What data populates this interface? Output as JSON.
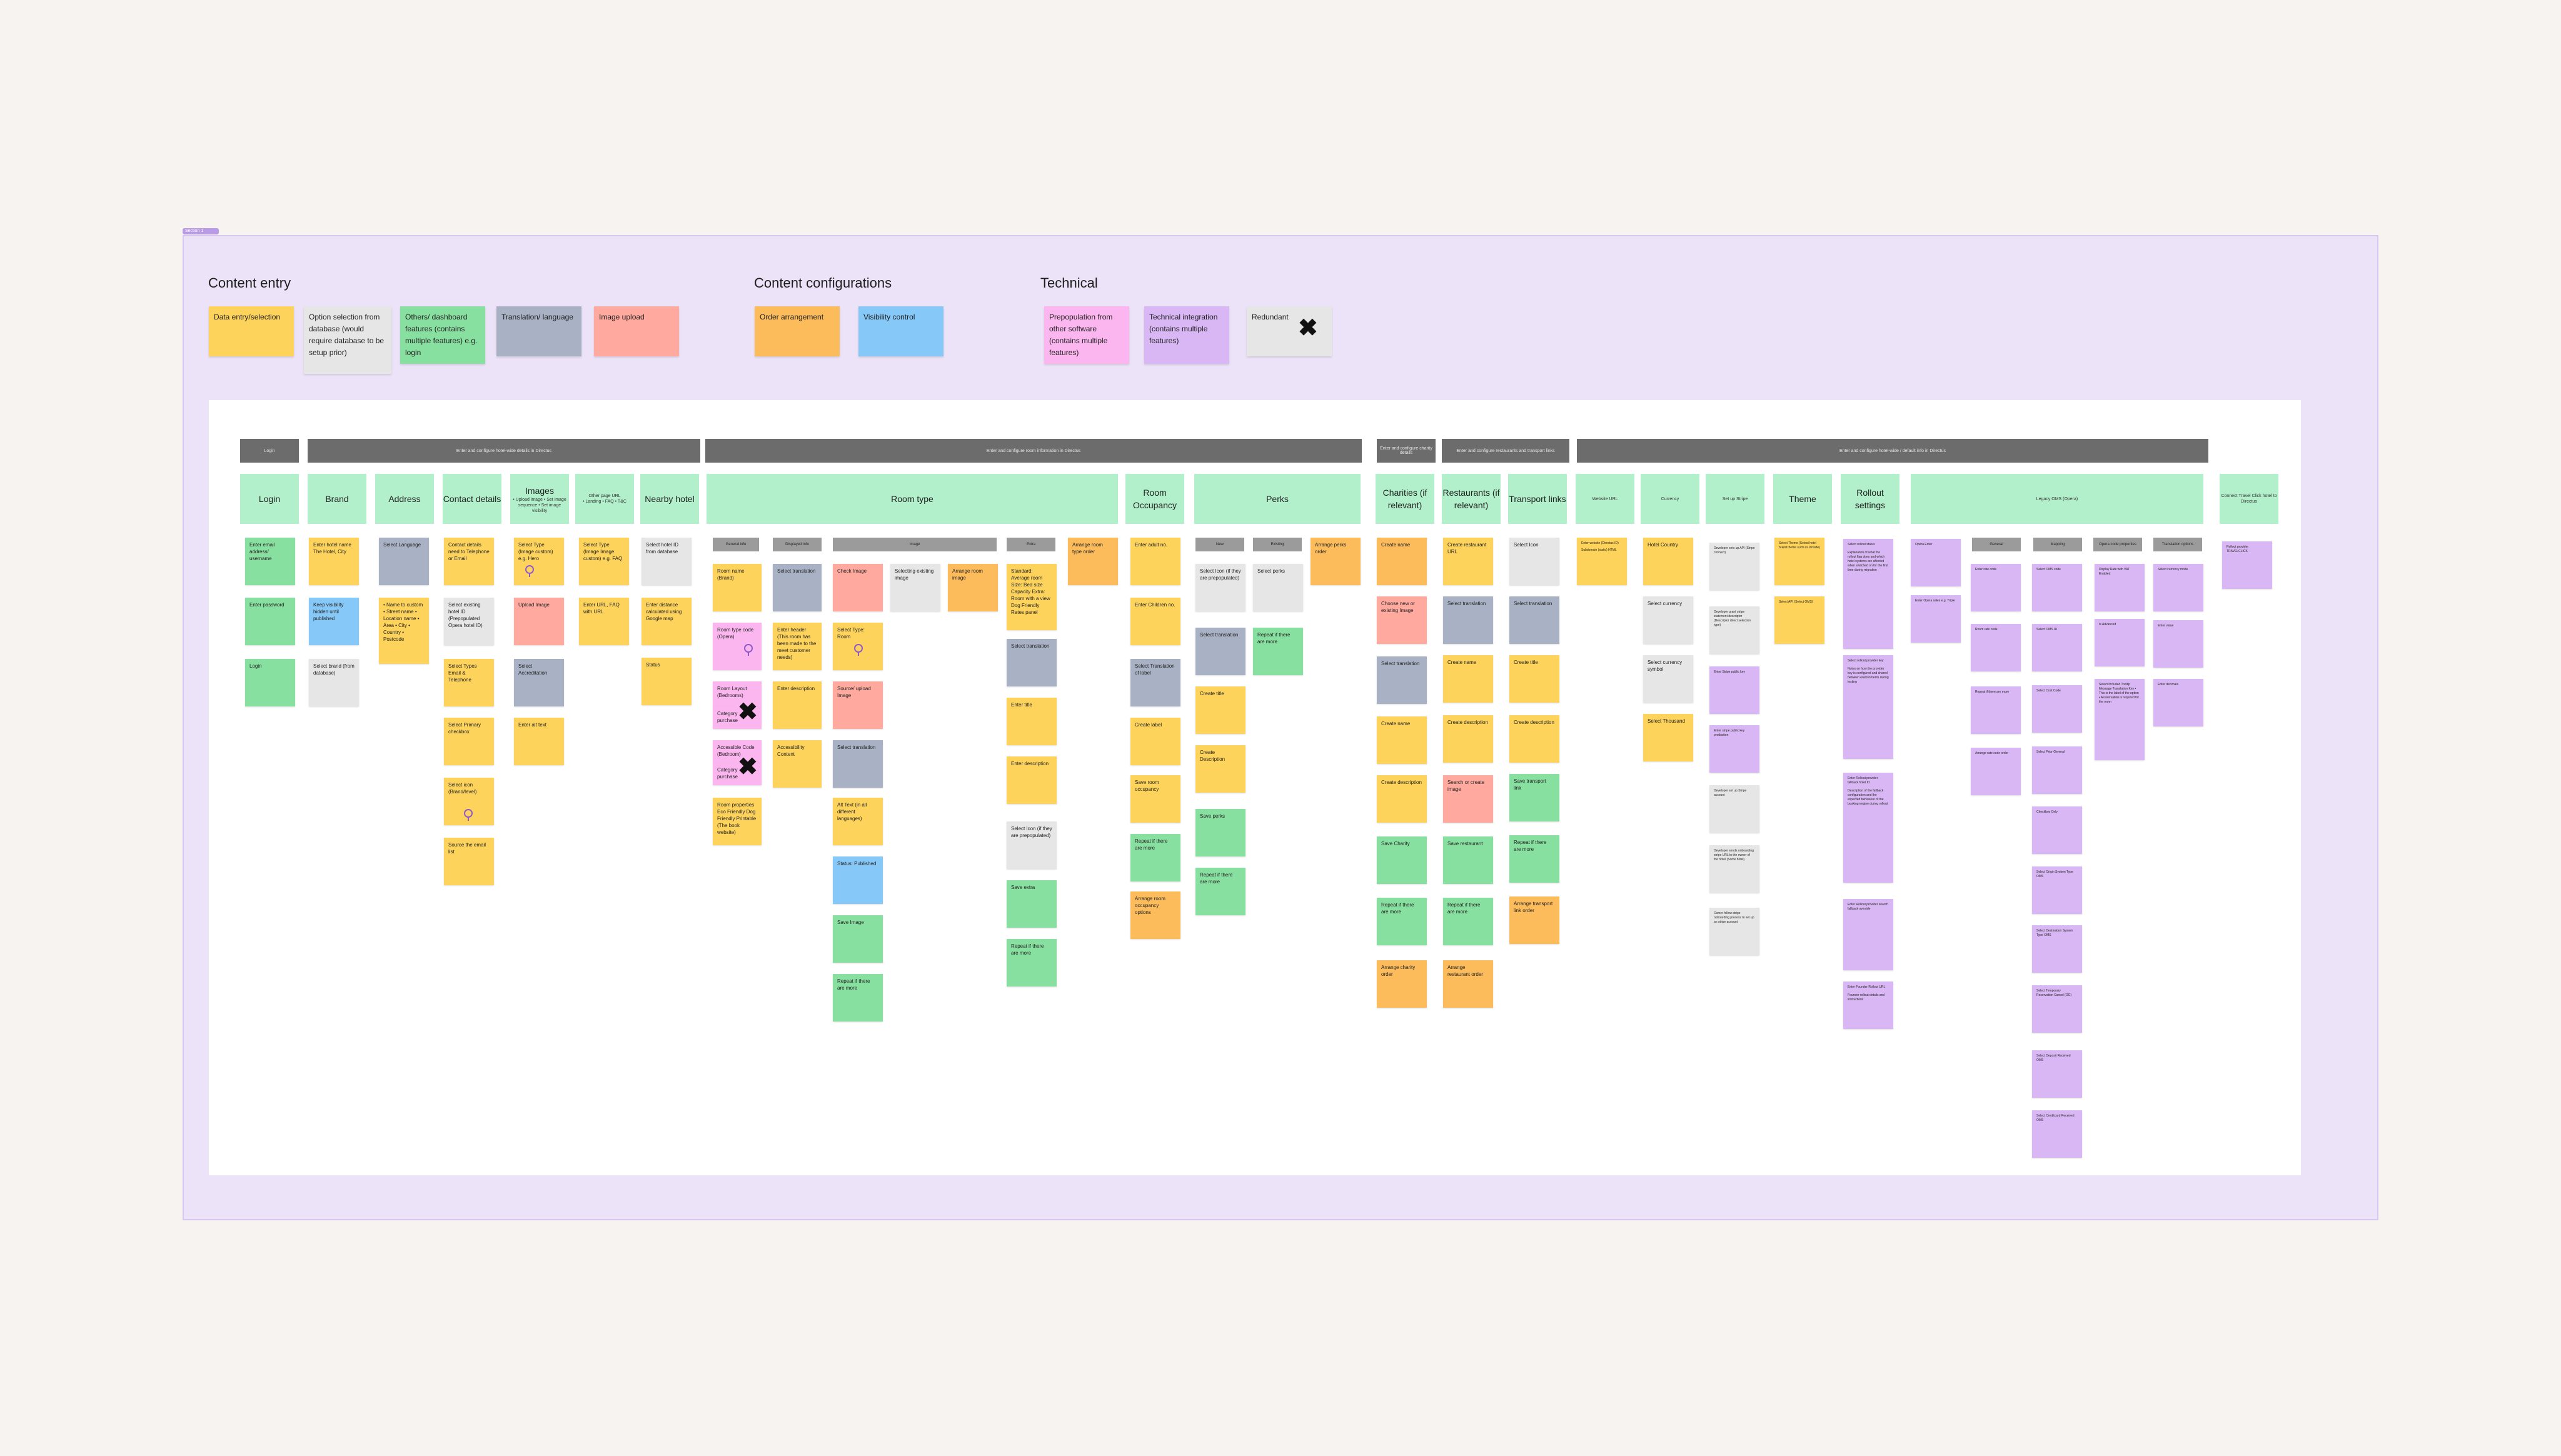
{
  "section": {
    "tag": "Section 1"
  },
  "legend": {
    "groups": {
      "content_entry": "Content entry",
      "content_configurations": "Content configurations",
      "technical": "Technical"
    },
    "items": {
      "data_entry": "Data entry/selection",
      "option_selection": "Option selection from database (would require database to be setup prior)",
      "others": "Others/ dashboard features (contains multiple features) e.g. login",
      "translation": "Translation/ language",
      "image_upload": "Image upload",
      "order": "Order arrangement",
      "visibility": "Visibility control",
      "prepopulation": "Prepopulation from other software (contains multiple features)",
      "integration": "Technical integration (contains multiple features)",
      "redundant": "Redundant"
    }
  },
  "headers": {
    "login": "Login",
    "hotel": "Enter and configure hotel-wide details in Directus",
    "room": "Enter and configure room information in Directus",
    "charity": "Enter and configure charity details",
    "restaurant": "Enter and configure restaurants and transport links",
    "settings": "Enter and configure hotel-wide / default info in Directus"
  },
  "columns": {
    "login": "Login",
    "brand": "Brand",
    "address": "Address",
    "contact": "Contact details",
    "images": "Images",
    "images_sub": "• Upload image • Set image sequence • Set image visibility",
    "other_url": "Other page URL",
    "other_url_sub": "• Landing • FAQ • T&C",
    "nearby": "Nearby hotel",
    "room_type": "Room type",
    "occupancy": "Room Occupancy",
    "perks": "Perks",
    "charities": "Charities (if relevant)",
    "restaurants": "Restaurants (if relevant)",
    "transport": "Transport links",
    "website": "Website URL",
    "currency": "Currency",
    "stripe": "Set up Stripe",
    "theme": "Theme",
    "rollout": "Rollout settings",
    "legacy": "Legacy OMS (Opera)",
    "connect": "Connect Travel Click hotel to Directus"
  },
  "subheaders": {
    "general": "General info",
    "displayed": "Displayed info",
    "image": "Image",
    "extra": "Extra",
    "new": "New",
    "existing": "Existing",
    "s1": "General",
    "s2": "Mapping",
    "s3": "Opera code properties",
    "s4": "Translation options"
  },
  "notes": {
    "login1": "Enter email address/ username",
    "login2": "Enter password",
    "login3": "Login",
    "brand1": "Enter hotel name The Hotel, City",
    "brand2": "Keep visibility hidden until published",
    "brand3": "Select brand (from database)",
    "addr1": "Select Language",
    "addr2": "• Name to custom • Street name • Location name • Area • City • Country • Postcode",
    "contact1": "Contact details need to Telephone or Email",
    "contact2": "Select existing hotel ID (Prepopulated Opera hotel ID)",
    "contact3": "Select Types Email & Telephone",
    "contact4": "Select Primary checkbox",
    "contact5": "Select icon (Brand/level)",
    "contact6": "Source the email list",
    "img1": "Select Type (Image custom) e.g. Hero",
    "img2": "Upload Image",
    "img3": "Select Accreditation",
    "img4": "Enter alt text",
    "url1": "Select Type (Image Image custom) e.g. FAQ",
    "url2": "Enter URL, FAQ with URL",
    "near1": "Select hotel ID from database",
    "near2": "Enter distance calculated using Google map",
    "near3": "Status",
    "rt1": "Room name (Brand)",
    "rt2": "Room type code (Opera)",
    "rt3": "Room Layout (Bedrooms)",
    "rt4": "Category purchase",
    "rt5": "Accessible Code (Bedroom)",
    "rt6": "Category purchase",
    "rt7": "Room properties Eco Friendly Dog Friendly Printable (The book website)",
    "rt8": "Select translation",
    "rt9": "Enter header (This room has been made to the meet customer needs)",
    "rt10": "Enter description",
    "rt11": "Accessibility Content",
    "rt12": "Check Image",
    "rt13": "Selecting existing image",
    "rt14": "Arrange room image",
    "rt15": "Select Type: Room",
    "rt16": "Source/ upload Image",
    "rt17": "Select translation",
    "rt18": "Alt Text (in all different languages)",
    "rt19": "Status: Published",
    "rt20": "Save Image",
    "rt21": "Repeat if there are more",
    "rt22": "Standard: Average room Size: Bed size Capacity Extra: Room with a view Dog Friendly Rates panel",
    "rt23": "Select translation",
    "rt24": "Enter title",
    "rt25": "Enter description",
    "rt26": "Select Icon (if they are prepopulated)",
    "rt27": "Save extra",
    "rt28": "Repeat if there are more",
    "rt29": "Arrange room type order",
    "oc1": "Enter adult no.",
    "oc2": "Enter Children no.",
    "oc3": "Select Translation of label",
    "oc4": "Create label",
    "oc5": "Save room occupancy",
    "oc6": "Repeat if there are more",
    "oc7": "Arrange room occupancy options",
    "pk1": "Select Icon (if they are prepopulated)",
    "pk2": "Select translation",
    "pk3": "Create title",
    "pk4": "Create Description",
    "pk5": "Save perks",
    "pk6": "Repeat if there are more",
    "pk7": "Select perks",
    "pk8": "Repeat if there are more",
    "pk9": "Arrange perks order",
    "ch1": "Create name",
    "ch2": "Choose new or existing Image",
    "ch3": "Select translation",
    "ch4": "Create name",
    "ch5": "Create description",
    "ch6": "Save Charity",
    "ch7": "Repeat if there are more",
    "ch8": "Arrange charity order",
    "rs1": "Create restaurant URL",
    "rs2": "Select translation",
    "rs3": "Create name",
    "rs4": "Create description",
    "rs5": "Search or create image",
    "rs6": "Save restaurant",
    "rs7": "Repeat if there are more",
    "rs8": "Arrange restaurant order",
    "tr1": "Select Icon",
    "tr2": "Select translation",
    "tr3": "Create title",
    "tr4": "Create description",
    "tr5": "Save transport link",
    "tr6": "Repeat if there are more",
    "tr7": "Arrange transport link order",
    "web1": "Enter website (Directus ID)",
    "web2": "Subdomain (static) HTML",
    "cur1": "Hotel Country",
    "cur2": "Select currency",
    "cur3": "Select currency symbol",
    "cur4": "Select Thousand",
    "st1": "Developer sets up API (Stripe connect)",
    "st2": "Developer grant stripe statement descriptor (Descriptor direct selection type)",
    "st3": "Enter Stripe public key",
    "st4": "Enter stripe public key production",
    "st5": "Developer set up Stripe account",
    "st6": "Developer sends onboarding stripe URL to the owner of the hotel (Some hotel)",
    "st7": "Owner follow stripe onboarding process to set up an stripe account",
    "th1": "Select Theme (Select hotel brand theme such as Innside)",
    "th2": "Select API (Select OMS)",
    "ro1": "Select rollout status",
    "ro2": "Explanation of what the rollout flag does and which hotel systems are affected when switched on for the first time during migration",
    "ro3": "Select rollout provider key",
    "ro4": "Notes on how the provider key is configured and shared between environments during testing",
    "ro5": "Enter Rollout provider fallback hotel ID",
    "ro6": "Description of the fallback configuration and the expected behaviour of the booking engine during rollout",
    "ro7": "Enter Rollout provider search fallback override",
    "ro8": "Enter Founder Rollout URL",
    "ro9": "Founder rollout details and instructions",
    "lg1": "Opera Enter",
    "lg2": "Enter Opera sales e.g. Triple",
    "lg3": "Enter rate code",
    "lg4": "Room rate code",
    "lg5": "Repeat if there are more",
    "lg6": "Arrange rate code order",
    "lg7": "Select OMS code",
    "lg8": "Select OMS ID",
    "lg9": "Select Cost Code",
    "lg10": "Select Prior General",
    "lg11": "Checkbox Only",
    "lg12": "Select Origin System Type OMS",
    "lg13": "Select Destination System Type OMS",
    "lg14": "Select Temporary Reservation Cancel (OG)",
    "lg15": "Select Deposit Received OMS",
    "lg16": "Select Creditcard Received OMS",
    "lg17": "Display Rate with VAT Enabled",
    "lg18": "Is Advanced",
    "lg19": "Select Included Tooltip Message Translation Key • This is the label of the option • A reservation is required for the room",
    "lg20": "Select currency mode",
    "lg21": "Enter value",
    "lg22": "Enter decimals",
    "cn1": "Rollout provider TRAVELCLICK"
  }
}
